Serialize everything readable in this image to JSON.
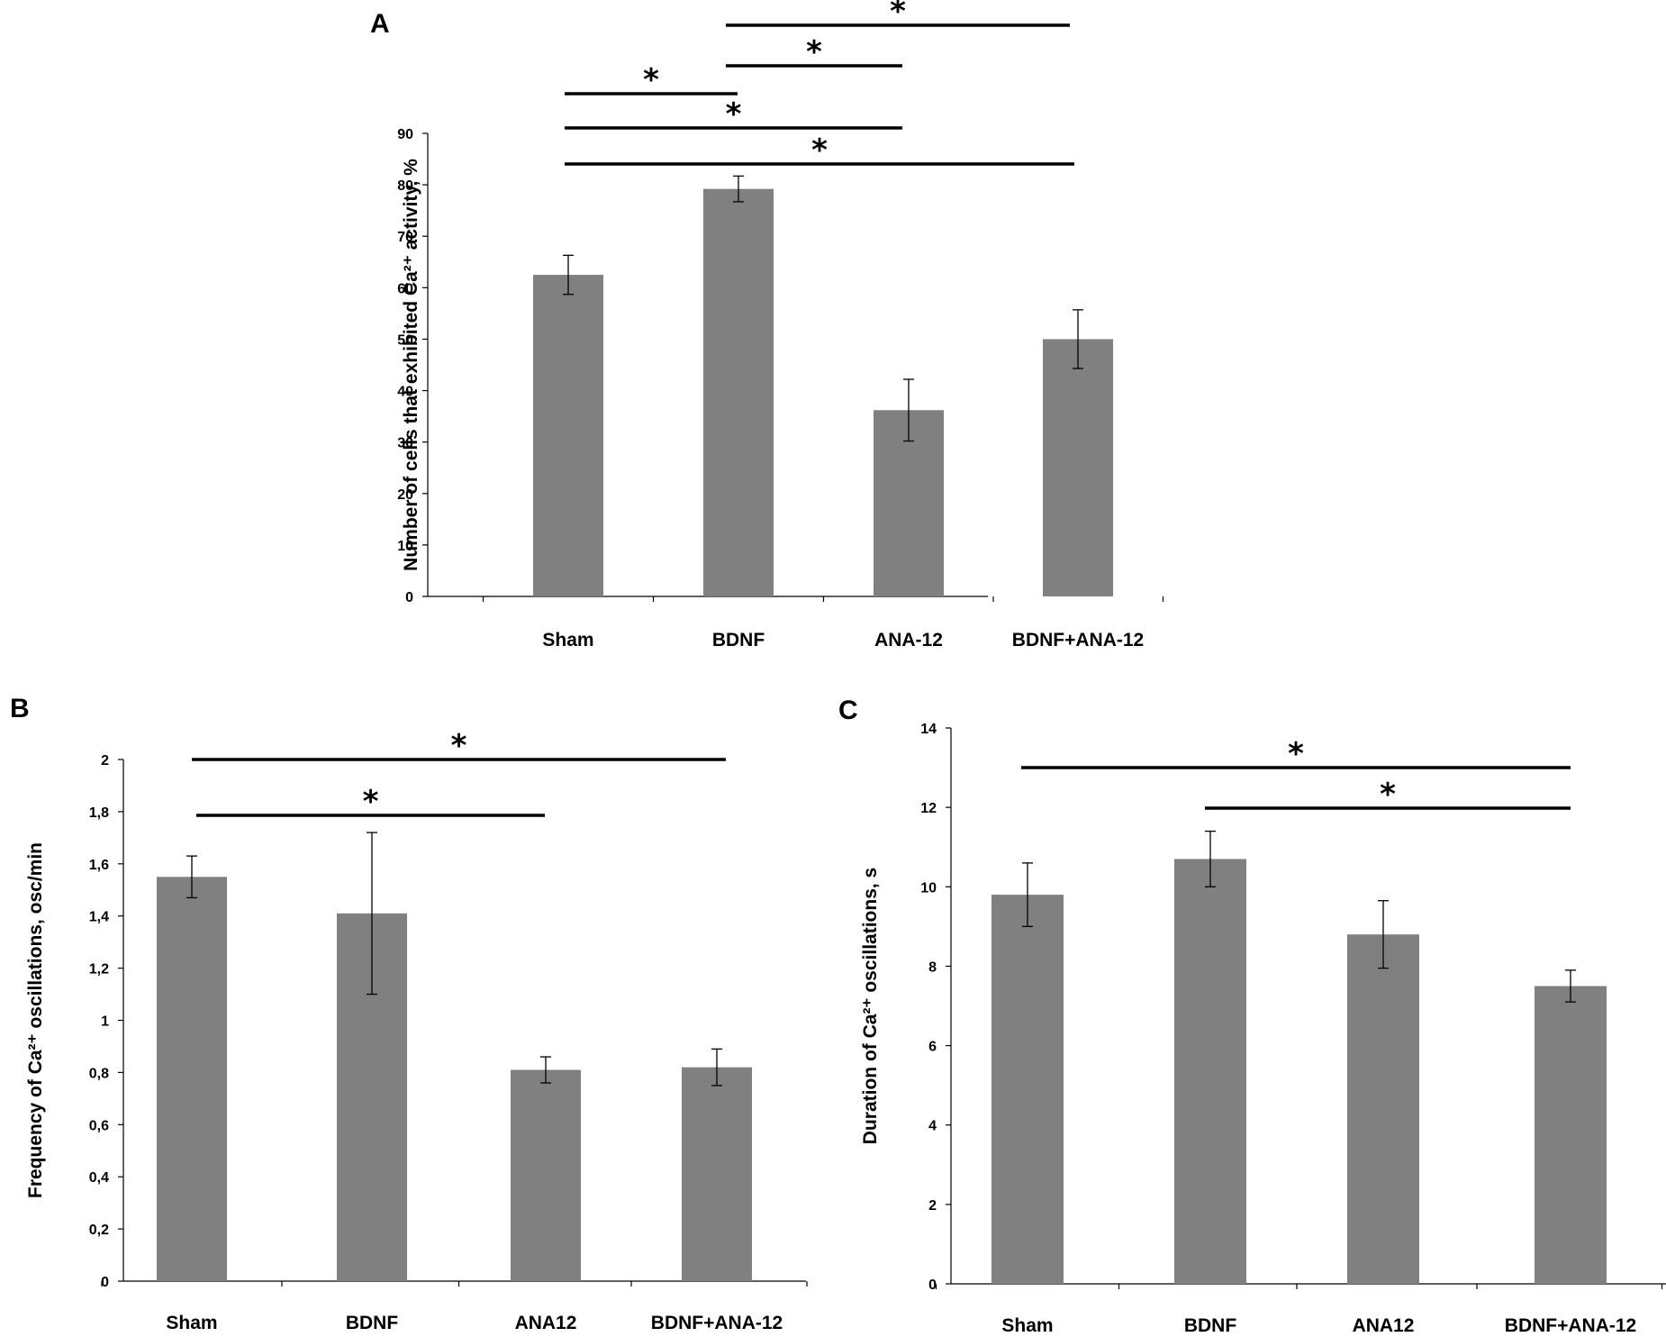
{
  "chart_data": [
    {
      "id": "A",
      "panel_label": "A",
      "type": "bar",
      "categories": [
        "Sham",
        "BDNF",
        "ANA-12",
        "BDNF+ANA-12"
      ],
      "values": [
        62.5,
        79.2,
        36.2,
        50.0
      ],
      "errors": [
        3.8,
        2.5,
        6.0,
        5.7
      ],
      "ylabel": "Number of cells that exhibited Ca²⁺ activity, %",
      "ylim": [
        0,
        90
      ],
      "yticks": [
        0,
        10,
        20,
        30,
        40,
        50,
        60,
        70,
        80,
        90
      ],
      "ytick_labels": [
        "0",
        "10",
        "20",
        "30",
        "40",
        "50",
        "60",
        "70",
        "80",
        "90"
      ],
      "significance": [
        {
          "from": 1,
          "to": 3,
          "label": "*"
        },
        {
          "from": 1,
          "to": 2,
          "label": "*"
        },
        {
          "from": 0,
          "to": 1,
          "label": "*"
        },
        {
          "from": 0,
          "to": 2,
          "label": "*"
        },
        {
          "from": 0,
          "to": 3,
          "label": "*"
        }
      ]
    },
    {
      "id": "B",
      "panel_label": "B",
      "type": "bar",
      "categories": [
        "Sham",
        "BDNF",
        "ANA12",
        "BDNF+ANA-12"
      ],
      "values": [
        1.55,
        1.41,
        0.81,
        0.82
      ],
      "errors": [
        0.08,
        0.31,
        0.05,
        0.07
      ],
      "ylabel": "Frequency of Ca²⁺ oscillations, osc/min",
      "ylim": [
        0,
        2
      ],
      "yticks": [
        0,
        0.2,
        0.4,
        0.6,
        0.8,
        1,
        1.2,
        1.4,
        1.6,
        1.8,
        2
      ],
      "ytick_labels": [
        "0",
        "0,2",
        "0,4",
        "0,6",
        "0,8",
        "1",
        "1,2",
        "1,4",
        "1,6",
        "1,8",
        "2"
      ],
      "significance": [
        {
          "from": 0,
          "to": 3,
          "label": "*"
        },
        {
          "from": 0,
          "to": 2,
          "label": "*"
        }
      ]
    },
    {
      "id": "C",
      "panel_label": "C",
      "type": "bar",
      "categories": [
        "Sham",
        "BDNF",
        "ANA12",
        "BDNF+ANA-12"
      ],
      "values": [
        9.8,
        10.7,
        8.8,
        7.5
      ],
      "errors": [
        0.8,
        0.7,
        0.85,
        0.4
      ],
      "ylabel": "Duration of Ca²⁺ oscillations, s",
      "ylim": [
        0,
        14
      ],
      "yticks": [
        0,
        2,
        4,
        6,
        8,
        10,
        12,
        14
      ],
      "ytick_labels": [
        "0",
        "2",
        "4",
        "6",
        "8",
        "10",
        "12",
        "14"
      ],
      "significance": [
        {
          "from": 0,
          "to": 3,
          "label": "*"
        },
        {
          "from": 1,
          "to": 3,
          "label": "*"
        }
      ]
    }
  ]
}
